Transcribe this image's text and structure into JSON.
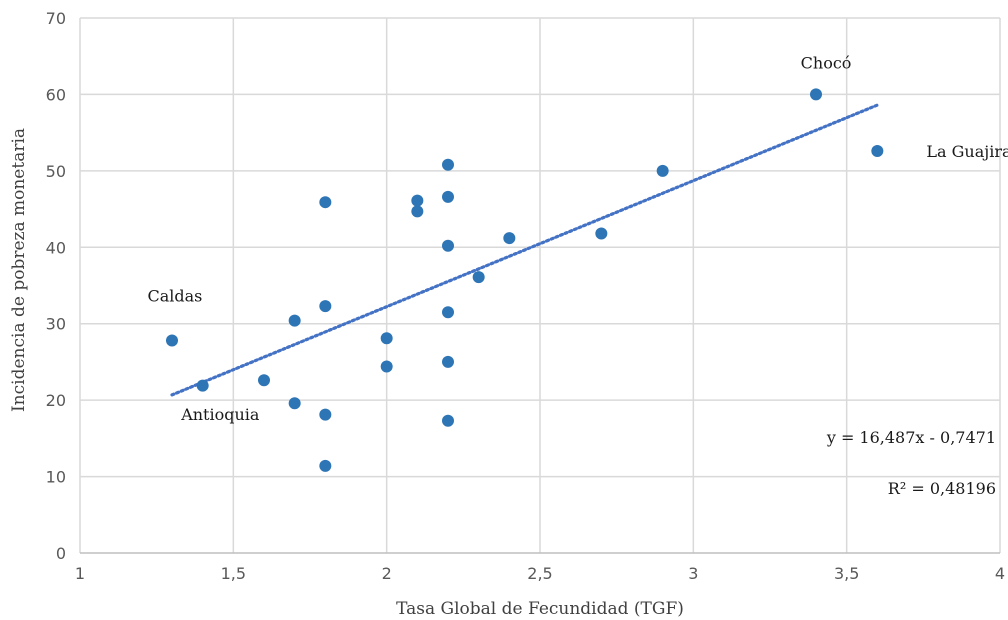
{
  "chart_data": {
    "type": "scatter",
    "xlabel": "Tasa Global de Fecundidad (TGF)",
    "ylabel": "Incidencia de pobreza monetaria",
    "xlim": [
      1,
      4
    ],
    "ylim": [
      0,
      70
    ],
    "x_ticks": [
      {
        "value": 1,
        "label": "1"
      },
      {
        "value": 1.5,
        "label": "1,5"
      },
      {
        "value": 2,
        "label": "2"
      },
      {
        "value": 2.5,
        "label": "2,5"
      },
      {
        "value": 3,
        "label": "3"
      },
      {
        "value": 3.5,
        "label": "3,5"
      },
      {
        "value": 4,
        "label": "4"
      }
    ],
    "y_ticks": [
      {
        "value": 0,
        "label": "0"
      },
      {
        "value": 10,
        "label": "10"
      },
      {
        "value": 20,
        "label": "20"
      },
      {
        "value": 30,
        "label": "30"
      },
      {
        "value": 40,
        "label": "40"
      },
      {
        "value": 50,
        "label": "50"
      },
      {
        "value": 60,
        "label": "60"
      },
      {
        "value": 70,
        "label": "70"
      }
    ],
    "grid": true,
    "marker_color": "#2e75b6",
    "trendline_color": "#4472c4",
    "points": [
      {
        "x": 1.3,
        "y": 27.8
      },
      {
        "x": 1.4,
        "y": 21.9
      },
      {
        "x": 1.6,
        "y": 22.6
      },
      {
        "x": 1.7,
        "y": 30.4
      },
      {
        "x": 1.7,
        "y": 19.6
      },
      {
        "x": 1.8,
        "y": 45.9
      },
      {
        "x": 1.8,
        "y": 32.3
      },
      {
        "x": 1.8,
        "y": 18.1
      },
      {
        "x": 1.8,
        "y": 11.4
      },
      {
        "x": 2.0,
        "y": 28.1
      },
      {
        "x": 2.0,
        "y": 24.4
      },
      {
        "x": 2.1,
        "y": 46.1
      },
      {
        "x": 2.1,
        "y": 44.7
      },
      {
        "x": 2.2,
        "y": 50.8
      },
      {
        "x": 2.2,
        "y": 46.6
      },
      {
        "x": 2.2,
        "y": 40.2
      },
      {
        "x": 2.2,
        "y": 31.5
      },
      {
        "x": 2.2,
        "y": 25.0
      },
      {
        "x": 2.2,
        "y": 17.3
      },
      {
        "x": 2.3,
        "y": 36.1
      },
      {
        "x": 2.4,
        "y": 41.2
      },
      {
        "x": 2.7,
        "y": 41.8
      },
      {
        "x": 2.9,
        "y": 50.0
      },
      {
        "x": 3.4,
        "y": 60.0
      },
      {
        "x": 3.6,
        "y": 52.6
      }
    ],
    "trendline": {
      "slope": 16.487,
      "intercept": -0.7471,
      "x_start": 1.3,
      "x_end": 3.6
    },
    "annotations": [
      {
        "text": "Chocó",
        "x": 3.35,
        "y": 64.2
      },
      {
        "text": "La Guajira",
        "x": 3.76,
        "y": 52.6
      },
      {
        "text": "Caldas",
        "x": 1.22,
        "y": 33.7
      },
      {
        "text": "Antioquia",
        "x": 1.33,
        "y": 18.2
      }
    ],
    "equation_text": "y = 16,487x - 0,7471",
    "r2_text": "R² = 0,48196"
  }
}
